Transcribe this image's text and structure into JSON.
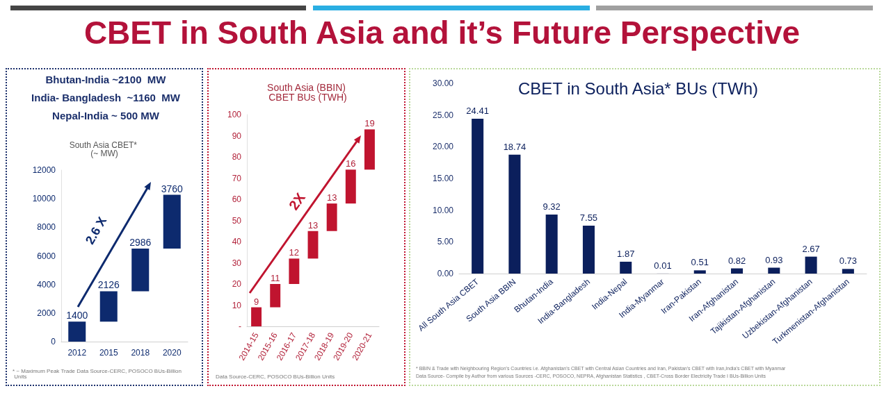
{
  "chart_data": [
    {
      "type": "other",
      "title": "CBET in South Asia and it’s Future Perspective"
    },
    {
      "type": "bar",
      "title": "South Asia CBET* (~ MW)",
      "categories": [
        "2012",
        "2015",
        "2018",
        "2020"
      ],
      "values": [
        1400,
        2126,
        2986,
        3760
      ],
      "base": [
        0,
        1400,
        3526,
        6512
      ],
      "color": "#0d2a6e",
      "data_labels": true,
      "ylim": [
        0,
        12000
      ],
      "yticks": [
        0,
        2000,
        4000,
        6000,
        8000,
        10000,
        12000
      ],
      "annotations": [
        "Bhutan-India ~2100  MW",
        "India- Bangladesh  ~1160  MW",
        "Nepal-India ~ 500 MW",
        "2.6 X",
        "* ~ Maximum Peak Trade Data Source-CERC, POSOCO BUs-Billion Units"
      ]
    },
    {
      "type": "bar",
      "title": "South Asia (BBIN) CBET BUs (TWH)",
      "categories": [
        "2014-15",
        "2015-16",
        "2016-17",
        "2017-18",
        "2018-19",
        "2019-20",
        "2020-21"
      ],
      "values": [
        9,
        11,
        12,
        13,
        13,
        16,
        19
      ],
      "base": [
        0,
        9,
        20,
        32,
        45,
        58,
        74
      ],
      "color": "#c0142f",
      "data_labels": true,
      "ylim": [
        0,
        100
      ],
      "yticks": [
        {
          "value": 0,
          "label": "-"
        },
        10,
        20,
        30,
        40,
        50,
        60,
        70,
        80,
        90,
        100
      ],
      "annotations": [
        "2X",
        "Data Source-CERC, POSOCO BUs-Billion Units"
      ]
    },
    {
      "type": "bar",
      "title": "CBET in South Asia* BUs (TWh)",
      "categories": [
        "All South Asia CBET",
        "South Asia BBIN",
        "Bhutan-India",
        "India-Bangladesh",
        "India-Nepal",
        "India-Myanmar",
        "Iran-Pakistan",
        "Iran-Afghanistan",
        "Tajikistan-Afghanistan",
        "Uzbekistan-Afghanistan",
        "Turkmenistan-Afghanistan"
      ],
      "values": [
        24.41,
        18.74,
        9.32,
        7.55,
        1.87,
        0.01,
        0.51,
        0.82,
        0.93,
        2.67,
        0.73
      ],
      "color": "#0b1f5c",
      "data_labels": true,
      "ylim": [
        0,
        30
      ],
      "yticks": [
        {
          "value": 0,
          "label": "0.00"
        },
        {
          "value": 5,
          "label": "5.00"
        },
        {
          "value": 10,
          "label": "10.00"
        },
        {
          "value": 15,
          "label": "15.00"
        },
        {
          "value": 20,
          "label": "20.00"
        },
        {
          "value": 25,
          "label": "25.00"
        },
        {
          "value": 30,
          "label": "30.00"
        }
      ],
      "annotations": [
        "* BBIN & Trade with Neighbouring Region's Countries i.e. Afghanistan's CBET with Central Asian Countries and Iran, Pakistan's CBET with Iran,India's CBET with Myanmar",
        "Data Source- Compile by Author from various Sources -CERC, POSOCO, NEPRA, Afghanistan Statistics , CBET-Cross Border Electricity Trade I BUs-Billion Units"
      ]
    }
  ]
}
